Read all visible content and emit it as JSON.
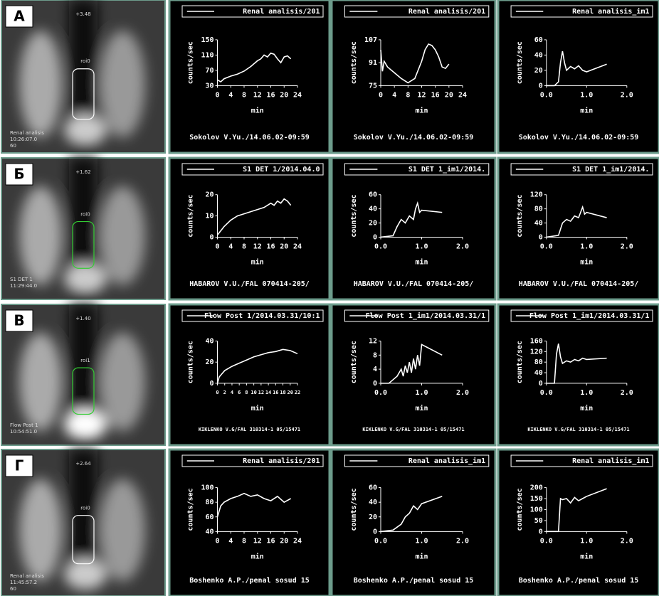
{
  "rows": [
    {
      "label": "А",
      "scan_texts": [
        "+3.48",
        "roi0",
        "Renal analisis",
        "10:26:07.0",
        "60"
      ]
    },
    {
      "label": "Б",
      "scan_texts": [
        "+1.62",
        "roi0",
        "S1 DET 1",
        "11:29:44.0"
      ]
    },
    {
      "label": "В",
      "scan_texts": [
        "+1.40",
        "roi1",
        "Flow Post 1",
        "10:54:51.0"
      ]
    },
    {
      "label": "Г",
      "scan_texts": [
        "+2.64",
        "roi0",
        "Renal analisis",
        "11:45:57.2",
        "60"
      ]
    }
  ],
  "chart_data": [
    {
      "type": "line",
      "y_label": "counts/sec",
      "x_label": "min",
      "footer": "Sokolov V.Yu./14.06.02-09:59",
      "x": [
        0,
        1,
        2,
        4,
        6,
        8,
        10,
        12,
        13,
        14,
        15,
        16,
        17,
        18,
        19,
        20,
        21,
        22
      ],
      "series": [
        {
          "name": "Renal analisis/201",
          "color": "#ffffff",
          "values": [
            45,
            40,
            48,
            55,
            60,
            68,
            80,
            95,
            100,
            110,
            105,
            115,
            112,
            100,
            90,
            105,
            108,
            100
          ]
        }
      ],
      "xlim": [
        0,
        24
      ],
      "xticks": [
        0,
        4,
        8,
        12,
        16,
        20,
        24
      ],
      "ylim": [
        30,
        150
      ],
      "yticks": [
        30,
        70,
        110,
        150
      ]
    },
    {
      "type": "line",
      "y_label": "counts/sec",
      "x_label": "min",
      "footer": "Sokolov V.Yu./14.06.02-09:59",
      "x": [
        0,
        0.5,
        1,
        2,
        3,
        4,
        6,
        8,
        10,
        12,
        13,
        14,
        15,
        16,
        17,
        18,
        19,
        20
      ],
      "series": [
        {
          "name": "Renal analisis/201",
          "color": "#ffffff",
          "values": [
            100,
            85,
            92,
            88,
            86,
            84,
            80,
            77,
            80,
            92,
            100,
            104,
            103,
            100,
            95,
            88,
            87,
            90
          ]
        }
      ],
      "xlim": [
        0,
        24
      ],
      "xticks": [
        0,
        4,
        8,
        12,
        16,
        20,
        24
      ],
      "ylim": [
        75,
        107
      ],
      "yticks": [
        75,
        91,
        107
      ]
    },
    {
      "type": "line",
      "y_label": "counts/sec",
      "x_label": "min",
      "footer": "Sokolov V.Yu./14.06.02-09:59",
      "x": [
        0,
        0.2,
        0.3,
        0.35,
        0.4,
        0.45,
        0.5,
        0.6,
        0.7,
        0.8,
        0.9,
        1.0,
        1.5
      ],
      "series": [
        {
          "name": "Renal analisis_im1",
          "color": "#ffffff",
          "values": [
            0,
            0,
            5,
            30,
            45,
            30,
            20,
            25,
            22,
            26,
            20,
            18,
            28
          ]
        }
      ],
      "xlim": [
        0,
        2
      ],
      "xticks": [
        {
          "value": 0,
          "label": "0.0"
        },
        {
          "value": 1,
          "label": "1.0"
        },
        {
          "value": 2,
          "label": "2.0"
        }
      ],
      "ylim": [
        0,
        60
      ],
      "yticks": [
        0,
        20,
        40,
        60
      ]
    },
    {
      "type": "line",
      "y_label": "counts/sec",
      "x_label": "min",
      "footer": "HABAROV V.U./FAL 070414-205/",
      "x": [
        0,
        1,
        2,
        4,
        6,
        8,
        10,
        12,
        14,
        16,
        17,
        18,
        19,
        20,
        21,
        22
      ],
      "series": [
        {
          "name": "S1 DET 1/2014.04.0",
          "color": "#ffffff",
          "values": [
            1,
            3,
            5,
            8,
            10,
            11,
            12,
            13,
            14,
            16,
            15,
            17,
            16,
            18,
            17,
            15
          ]
        }
      ],
      "xlim": [
        0,
        24
      ],
      "xticks": [
        0,
        4,
        8,
        12,
        16,
        20,
        24
      ],
      "ylim": [
        0,
        20
      ],
      "yticks": [
        0,
        10,
        20
      ]
    },
    {
      "type": "line",
      "y_label": "counts/sec",
      "x_label": "min",
      "footer": "HABAROV V.U./FAL 070414-205/",
      "x": [
        0,
        0.3,
        0.4,
        0.5,
        0.6,
        0.7,
        0.8,
        0.85,
        0.9,
        0.95,
        1.0,
        1.5
      ],
      "series": [
        {
          "name": "S1 DET 1_im1/2014.",
          "color": "#ffffff",
          "values": [
            0,
            2,
            15,
            25,
            20,
            30,
            25,
            40,
            48,
            35,
            38,
            35
          ]
        }
      ],
      "xlim": [
        0,
        2
      ],
      "xticks": [
        {
          "value": 0,
          "label": "0.0"
        },
        {
          "value": 1,
          "label": "1.0"
        },
        {
          "value": 2,
          "label": "2.0"
        }
      ],
      "ylim": [
        0,
        60
      ],
      "yticks": [
        0,
        20,
        40,
        60
      ]
    },
    {
      "type": "line",
      "y_label": "counts/sec",
      "x_label": "min",
      "footer": "HABAROV V.U./FAL 070414-205/",
      "x": [
        0,
        0.3,
        0.4,
        0.5,
        0.6,
        0.7,
        0.8,
        0.85,
        0.9,
        0.95,
        1.0,
        1.5
      ],
      "series": [
        {
          "name": "S1 DET 1_im1/2014.",
          "color": "#ffffff",
          "values": [
            0,
            5,
            40,
            50,
            45,
            60,
            55,
            70,
            85,
            65,
            70,
            55
          ]
        }
      ],
      "xlim": [
        0,
        2
      ],
      "xticks": [
        {
          "value": 0,
          "label": "0.0"
        },
        {
          "value": 1,
          "label": "1.0"
        },
        {
          "value": 2,
          "label": "2.0"
        }
      ],
      "ylim": [
        0,
        120
      ],
      "yticks": [
        0,
        40,
        80,
        120
      ]
    },
    {
      "type": "line",
      "y_label": "counts/sec",
      "x_label": "min",
      "footer": "KIKLENKO V.G/FAL 310314-1 05/15471",
      "x": [
        0,
        0.5,
        1,
        2,
        4,
        6,
        8,
        10,
        12,
        14,
        16,
        18,
        20,
        22
      ],
      "series": [
        {
          "name": "Flow Post 1/2014.03.31/10:1",
          "color": "#ffffff",
          "values": [
            0,
            6,
            8,
            12,
            16,
            19,
            22,
            25,
            27,
            29,
            30,
            32,
            31,
            28
          ]
        }
      ],
      "xlim": [
        0,
        22
      ],
      "xticks": [
        0,
        2,
        4,
        6,
        8,
        10,
        12,
        14,
        16,
        18,
        20,
        22
      ],
      "ylim": [
        0,
        40
      ],
      "yticks": [
        0,
        20,
        40
      ]
    },
    {
      "type": "line",
      "y_label": "counts/sec",
      "x_label": "min",
      "footer": "KIKLENKO V.G/FAL 310314-1 05/15471",
      "x": [
        0,
        0.2,
        0.3,
        0.4,
        0.5,
        0.55,
        0.6,
        0.65,
        0.7,
        0.75,
        0.8,
        0.85,
        0.9,
        0.95,
        1.0,
        1.5
      ],
      "series": [
        {
          "name": "Flow Post 1_im1/2014.03.31/1",
          "color": "#ffffff",
          "values": [
            0,
            0,
            1,
            2,
            4,
            2,
            5,
            3,
            6,
            3,
            7,
            4,
            8,
            5,
            11,
            8
          ]
        }
      ],
      "xlim": [
        0,
        2
      ],
      "xticks": [
        {
          "value": 0,
          "label": "0.0"
        },
        {
          "value": 1,
          "label": "1.0"
        },
        {
          "value": 2,
          "label": "2.0"
        }
      ],
      "ylim": [
        0,
        12
      ],
      "yticks": [
        0,
        4,
        8,
        12
      ]
    },
    {
      "type": "line",
      "y_label": "counts/sec",
      "x_label": "min",
      "footer": "KIKLENKO V.G/FAL 310314-1 05/15471",
      "x": [
        0,
        0.2,
        0.25,
        0.3,
        0.35,
        0.4,
        0.5,
        0.6,
        0.7,
        0.8,
        0.9,
        1.0,
        1.5
      ],
      "series": [
        {
          "name": "Flow Post 1_im1/2014.03.31/1",
          "color": "#ffffff",
          "values": [
            0,
            0,
            110,
            150,
            100,
            75,
            85,
            80,
            90,
            85,
            95,
            90,
            95
          ]
        }
      ],
      "xlim": [
        0,
        2
      ],
      "xticks": [
        {
          "value": 0,
          "label": "0.0"
        },
        {
          "value": 1,
          "label": "1.0"
        },
        {
          "value": 2,
          "label": "2.0"
        }
      ],
      "ylim": [
        0,
        160
      ],
      "yticks": [
        0,
        40,
        80,
        120,
        160
      ]
    },
    {
      "type": "line",
      "y_label": "counts/sec",
      "x_label": "min",
      "footer": "Boshenko A.P./penal sosud 15",
      "x": [
        0,
        1,
        2,
        4,
        6,
        8,
        10,
        12,
        14,
        16,
        18,
        20,
        22
      ],
      "series": [
        {
          "name": "Renal analisis/201",
          "color": "#ffffff",
          "values": [
            60,
            75,
            80,
            85,
            88,
            92,
            88,
            90,
            85,
            82,
            88,
            80,
            85
          ]
        }
      ],
      "xlim": [
        0,
        24
      ],
      "xticks": [
        0,
        4,
        8,
        12,
        16,
        20,
        24
      ],
      "ylim": [
        40,
        100
      ],
      "yticks": [
        40,
        60,
        80,
        100
      ]
    },
    {
      "type": "line",
      "y_label": "counts/sec",
      "x_label": "min",
      "footer": "Boshenko A.P./penal sosud 15",
      "x": [
        0,
        0.3,
        0.5,
        0.6,
        0.7,
        0.8,
        0.9,
        1.0,
        1.5
      ],
      "series": [
        {
          "name": "Renal analisis_im1",
          "color": "#ffffff",
          "values": [
            0,
            2,
            10,
            20,
            25,
            35,
            30,
            38,
            48
          ]
        }
      ],
      "xlim": [
        0,
        2
      ],
      "xticks": [
        {
          "value": 0,
          "label": "0.0"
        },
        {
          "value": 1,
          "label": "1.0"
        },
        {
          "value": 2,
          "label": "2.0"
        }
      ],
      "ylim": [
        0,
        60
      ],
      "yticks": [
        0,
        20,
        40,
        60
      ]
    },
    {
      "type": "line",
      "y_label": "counts/sec",
      "x_label": "min",
      "footer": "Boshenko A.P./penal sosud 15",
      "x": [
        0,
        0.3,
        0.35,
        0.4,
        0.5,
        0.6,
        0.7,
        0.8,
        0.9,
        1.0,
        1.5
      ],
      "series": [
        {
          "name": "Renal analisis_im1",
          "color": "#ffffff",
          "values": [
            0,
            0,
            150,
            145,
            150,
            130,
            155,
            140,
            150,
            160,
            195
          ]
        }
      ],
      "xlim": [
        0,
        2
      ],
      "xticks": [
        {
          "value": 0,
          "label": "0.0"
        },
        {
          "value": 1,
          "label": "1.0"
        },
        {
          "value": 2,
          "label": "2.0"
        }
      ],
      "ylim": [
        0,
        200
      ],
      "yticks": [
        0,
        50,
        100,
        150,
        200
      ]
    }
  ]
}
